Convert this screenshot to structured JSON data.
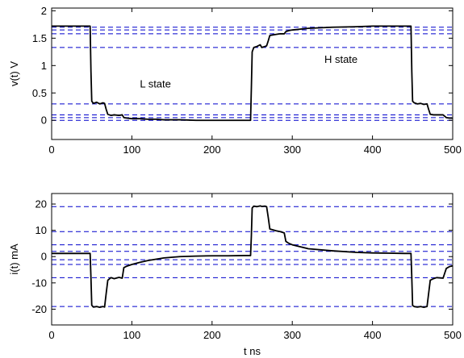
{
  "chart_data": [
    {
      "type": "line",
      "title": "",
      "xlabel": "",
      "ylabel": "v(t)  V",
      "xlim": [
        0,
        500
      ],
      "ylim": [
        -0.35,
        2.05
      ],
      "xticks": [
        "0",
        "100",
        "200",
        "300",
        "400",
        "500"
      ],
      "xtick_values": [
        0,
        100,
        200,
        300,
        400,
        500
      ],
      "yticks": [
        "0",
        "0.5",
        "1",
        "1.5",
        "2"
      ],
      "ytick_values": [
        0,
        0.5,
        1,
        1.5,
        2
      ],
      "grid": false,
      "line_color": "#000000",
      "reference_color": "#0000cc",
      "reference_levels": [
        1.7,
        1.65,
        1.58,
        1.33,
        0.3,
        0.1,
        0.05,
        0.0
      ],
      "annotations": [
        {
          "text": "L state",
          "x": 110,
          "y": 0.6
        },
        {
          "text": "H state",
          "x": 340,
          "y": 1.05
        }
      ],
      "series": [
        {
          "x": [
            0,
            48,
            49,
            50,
            52,
            56,
            60,
            64,
            66,
            68,
            70,
            72,
            74,
            78,
            84,
            88,
            90,
            94,
            100,
            110,
            120,
            130,
            140,
            160,
            180,
            200,
            220,
            240,
            248,
            249,
            250,
            252,
            256,
            260,
            262,
            266,
            268,
            270,
            272,
            280,
            285,
            290,
            292,
            296,
            300,
            320,
            350,
            380,
            400,
            420,
            440,
            448,
            449,
            450,
            452,
            456,
            460,
            464,
            468,
            470,
            472,
            476,
            480,
            488,
            492,
            496,
            500
          ],
          "values": [
            1.72,
            1.72,
            0.9,
            0.35,
            0.31,
            0.33,
            0.3,
            0.32,
            0.31,
            0.2,
            0.11,
            0.1,
            0.09,
            0.1,
            0.09,
            0.1,
            0.05,
            0.04,
            0.03,
            0.03,
            0.02,
            0.02,
            0.01,
            0.01,
            0.0,
            0.0,
            0.0,
            0.0,
            0.0,
            0.6,
            1.25,
            1.33,
            1.35,
            1.38,
            1.33,
            1.35,
            1.36,
            1.45,
            1.55,
            1.57,
            1.58,
            1.58,
            1.62,
            1.64,
            1.65,
            1.68,
            1.7,
            1.71,
            1.72,
            1.72,
            1.72,
            1.72,
            0.9,
            0.35,
            0.32,
            0.3,
            0.31,
            0.29,
            0.3,
            0.2,
            0.11,
            0.1,
            0.1,
            0.1,
            0.05,
            0.04,
            0.04
          ]
        }
      ]
    },
    {
      "type": "line",
      "title": "",
      "xlabel": "t  ns",
      "ylabel": "i(t)  mA",
      "xlim": [
        0,
        500
      ],
      "ylim": [
        -26,
        24
      ],
      "xticks": [
        "0",
        "100",
        "200",
        "300",
        "400",
        "500"
      ],
      "xtick_values": [
        0,
        100,
        200,
        300,
        400,
        500
      ],
      "yticks": [
        "-20",
        "-10",
        "0",
        "10",
        "20"
      ],
      "ytick_values": [
        -20,
        -10,
        0,
        10,
        20
      ],
      "grid": false,
      "line_color": "#000000",
      "reference_color": "#0000cc",
      "reference_levels": [
        19,
        9.5,
        4.5,
        2.0,
        -1.2,
        -3.0,
        -8.0,
        -19.0
      ],
      "annotations": [],
      "series": [
        {
          "x": [
            0,
            48,
            49,
            50,
            52,
            56,
            60,
            64,
            66,
            68,
            70,
            72,
            74,
            78,
            84,
            88,
            90,
            94,
            100,
            110,
            120,
            130,
            140,
            160,
            180,
            200,
            220,
            240,
            248,
            249,
            250,
            252,
            256,
            260,
            262,
            266,
            268,
            270,
            272,
            280,
            285,
            290,
            292,
            296,
            300,
            320,
            350,
            380,
            400,
            420,
            440,
            448,
            449,
            450,
            452,
            456,
            460,
            464,
            468,
            470,
            472,
            476,
            480,
            488,
            492,
            496,
            500
          ],
          "values": [
            1.2,
            1.2,
            -8,
            -18.5,
            -19.2,
            -19.0,
            -19.3,
            -19.0,
            -19.2,
            -14,
            -9.0,
            -8.5,
            -8.0,
            -8.4,
            -7.9,
            -8.2,
            -4.2,
            -3.6,
            -3.0,
            -2.2,
            -1.5,
            -1.0,
            -0.5,
            0.0,
            0.2,
            0.3,
            0.3,
            0.4,
            0.4,
            8,
            18.5,
            19.2,
            19.0,
            19.3,
            19.1,
            19.2,
            19.0,
            15,
            10.5,
            9.8,
            9.5,
            9.0,
            5.8,
            5.0,
            4.5,
            3.0,
            2.2,
            1.6,
            1.4,
            1.3,
            1.2,
            1.2,
            -8,
            -18.6,
            -19.0,
            -19.2,
            -19.0,
            -19.3,
            -19.0,
            -14,
            -9.0,
            -8.4,
            -8.0,
            -8.2,
            -4.5,
            -3.8,
            -3.5
          ]
        }
      ]
    }
  ]
}
